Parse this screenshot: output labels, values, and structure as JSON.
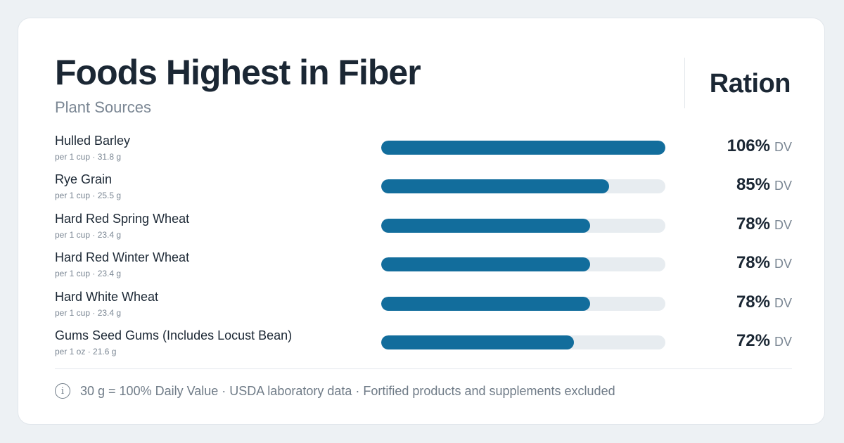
{
  "header": {
    "title": "Foods Highest in Fiber",
    "subtitle": "Plant Sources",
    "brand": "Ration"
  },
  "colors": {
    "bar_fill": "#126d9c",
    "bar_track": "#e7ecf0"
  },
  "chart_data": {
    "type": "bar",
    "orientation": "horizontal",
    "title": "Foods Highest in Fiber",
    "subtitle": "Plant Sources",
    "unit_label": "DV",
    "max_scale": 106,
    "categories": [
      "Hulled Barley",
      "Rye Grain",
      "Hard Red Spring Wheat",
      "Hard Red Winter Wheat",
      "Hard White Wheat",
      "Gums Seed Gums (Includes Locust Bean)"
    ],
    "servings": [
      "per 1 cup · 31.8 g",
      "per 1 cup · 25.5 g",
      "per 1 cup · 23.4 g",
      "per 1 cup · 23.4 g",
      "per 1 cup · 23.4 g",
      "per 1 oz · 21.6 g"
    ],
    "values": [
      106,
      85,
      78,
      78,
      78,
      72
    ],
    "value_labels": [
      "106%",
      "85%",
      "78%",
      "78%",
      "78%",
      "72%"
    ]
  },
  "footer": {
    "icon": "info-icon",
    "text": "30 g = 100% Daily Value · USDA laboratory data · Fortified products and supplements excluded"
  }
}
